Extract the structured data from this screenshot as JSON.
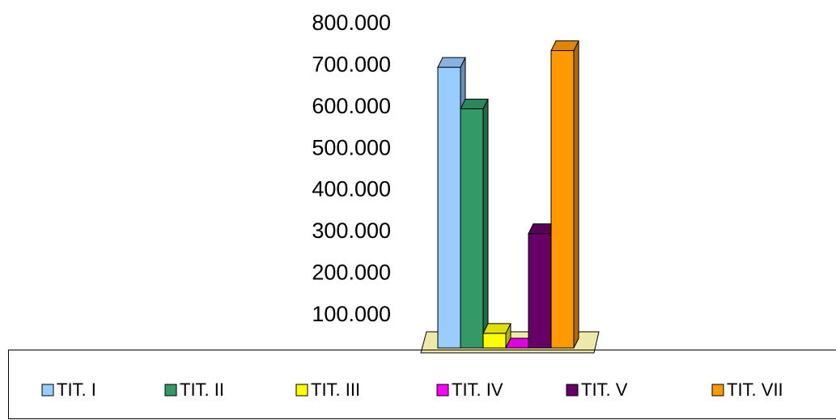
{
  "chart_data": {
    "type": "bar3d",
    "series": [
      {
        "name": "TIT. I",
        "color": "#99ccff",
        "values": [
          720000
        ]
      },
      {
        "name": "TIT. II",
        "color": "#339966",
        "values": [
          620000
        ]
      },
      {
        "name": "TIT. III",
        "color": "#ffff00",
        "values": [
          80000
        ]
      },
      {
        "name": "TIT. IV",
        "color": "#ff00ff",
        "values": [
          25000
        ]
      },
      {
        "name": "TIT. V",
        "color": "#660066",
        "values": [
          320000
        ]
      },
      {
        "name": "TIT. VII",
        "color": "#ff9900",
        "values": [
          760000
        ]
      }
    ],
    "ylim": [
      0,
      800000
    ],
    "yticks": [
      {
        "value": 100000,
        "label": "100.000"
      },
      {
        "value": 200000,
        "label": "200.000"
      },
      {
        "value": 300000,
        "label": "300.000"
      },
      {
        "value": 400000,
        "label": "400.000"
      },
      {
        "value": 500000,
        "label": "500.000"
      },
      {
        "value": 600000,
        "label": "600.000"
      },
      {
        "value": 700000,
        "label": "700.000"
      },
      {
        "value": 800000,
        "label": "800.000"
      }
    ],
    "grid": false,
    "legend": "bottom"
  }
}
